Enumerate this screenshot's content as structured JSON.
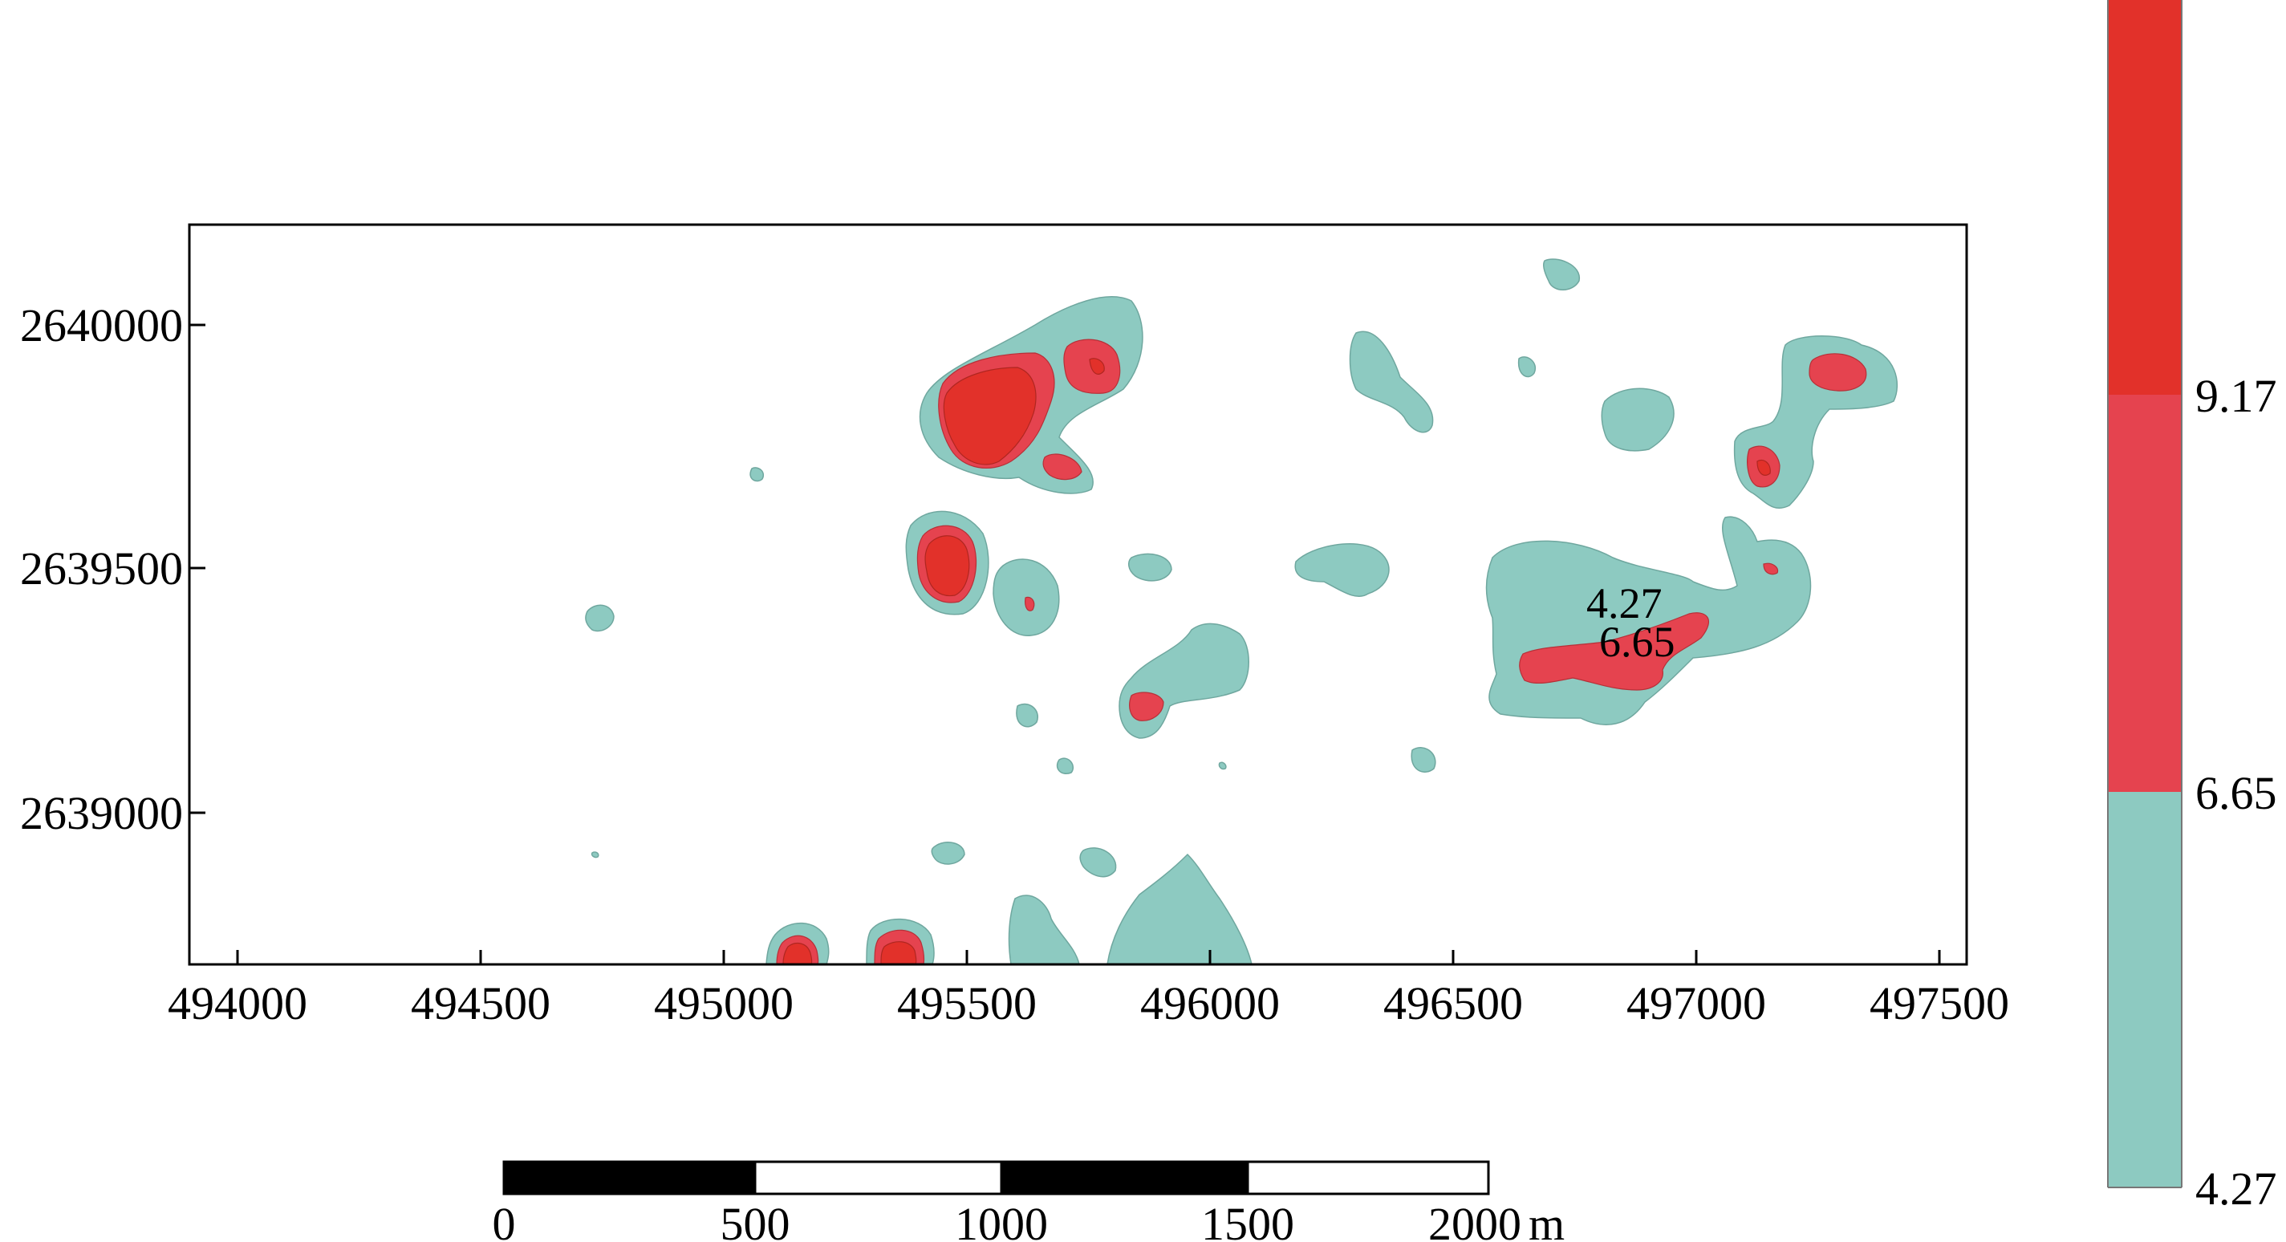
{
  "map": {
    "x_axis": {
      "ticks": [
        "494000",
        "494500",
        "495000",
        "495500",
        "496000",
        "496500",
        "497000",
        "497500"
      ]
    },
    "y_axis": {
      "ticks": [
        "2640000",
        "2639500",
        "2639000"
      ]
    },
    "contour_labels": [
      "4.27",
      "6.65"
    ]
  },
  "legend": {
    "labels": [
      "9.17",
      "6.65",
      "4.27"
    ],
    "colors": {
      "high": "#e2312a",
      "mid": "#e5434f",
      "low": "#8dcac1"
    }
  },
  "scale_bar": {
    "labels": [
      "0",
      "500",
      "1000",
      "1500",
      "2000"
    ],
    "unit": "m"
  }
}
